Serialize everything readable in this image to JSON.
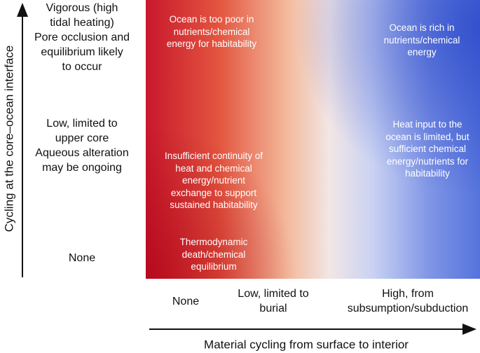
{
  "y_axis": {
    "label": "Cycling at the core–ocean interface",
    "levels": [
      [
        "Vigorous (high",
        "tidal heating)",
        "Pore occlusion and",
        "equilibrium likely",
        "to occur"
      ],
      [
        "Low, limited to",
        "upper core",
        "Aqueous alteration",
        "may be ongoing"
      ],
      [
        "None"
      ]
    ]
  },
  "x_axis": {
    "label": "Material cycling from surface to interior",
    "levels": [
      [
        "None"
      ],
      [
        "Low, limited to",
        "burial"
      ],
      [
        "High, from",
        "subsumption/subduction"
      ]
    ]
  },
  "annotations": [
    [
      "Ocean is too poor in",
      "nutrients/chemical",
      "energy for habitability"
    ],
    [
      "Ocean is rich in",
      "nutrients/chemical",
      "energy"
    ],
    [
      "Insufficient continuity of",
      "heat and chemical",
      "energy/nutrient",
      "exchange to support",
      "sustained habitability"
    ],
    [
      "Heat input to the",
      "ocean is limited, but",
      "sufficient chemical",
      "energy/nutrients for",
      "habitability"
    ],
    [
      "Thermodynamic",
      "death/chemical",
      "equilibrium"
    ]
  ]
}
